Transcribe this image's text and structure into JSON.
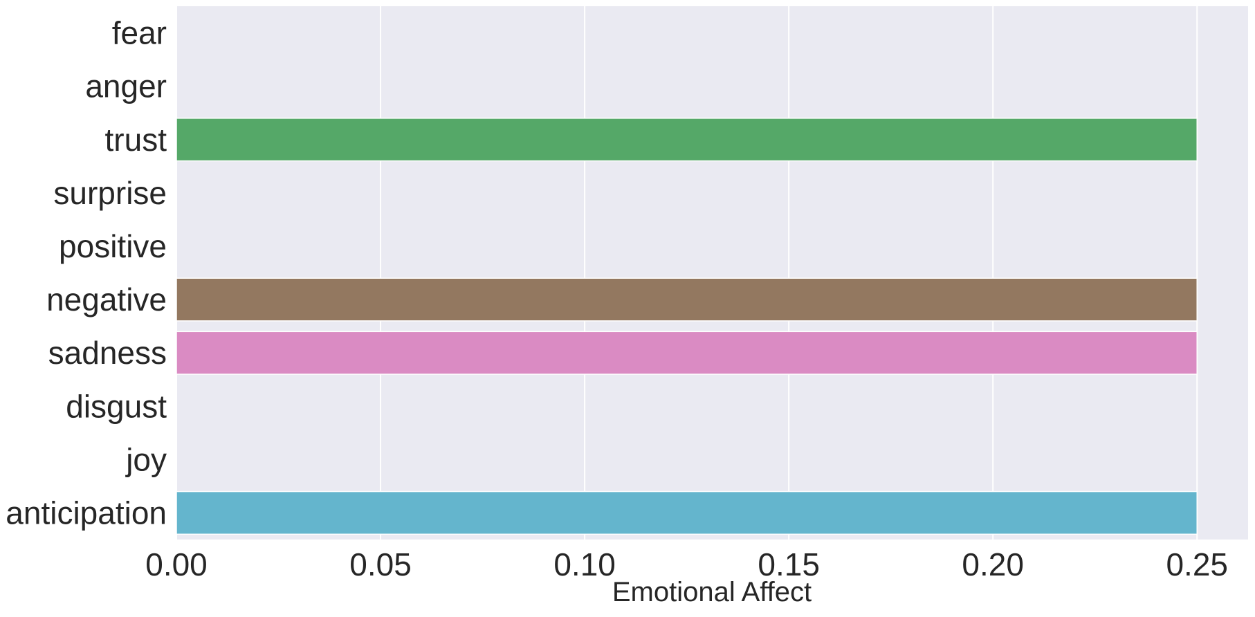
{
  "chart_data": {
    "type": "bar",
    "orientation": "horizontal",
    "xlabel": "Emotional Affect",
    "ylabel": "",
    "categories": [
      "fear",
      "anger",
      "trust",
      "surprise",
      "positive",
      "negative",
      "sadness",
      "disgust",
      "joy",
      "anticipation"
    ],
    "values": [
      0,
      0,
      0.25,
      0,
      0,
      0.25,
      0.25,
      0,
      0,
      0.25
    ],
    "colors": [
      "#4c72b0",
      "#dd8452",
      "#55a868",
      "#c44e52",
      "#8172b3",
      "#937860",
      "#da8bc3",
      "#8c8c8c",
      "#ccb974",
      "#64b5cd"
    ],
    "xlim": [
      0,
      0.2625
    ],
    "xticks": [
      0,
      0.05,
      0.1,
      0.15,
      0.2,
      0.25
    ],
    "xtick_labels": [
      "0.00",
      "0.05",
      "0.10",
      "0.15",
      "0.20",
      "0.25"
    ],
    "grid": true,
    "background_color": "#eaeaf2",
    "grid_color": "#ffffff"
  }
}
